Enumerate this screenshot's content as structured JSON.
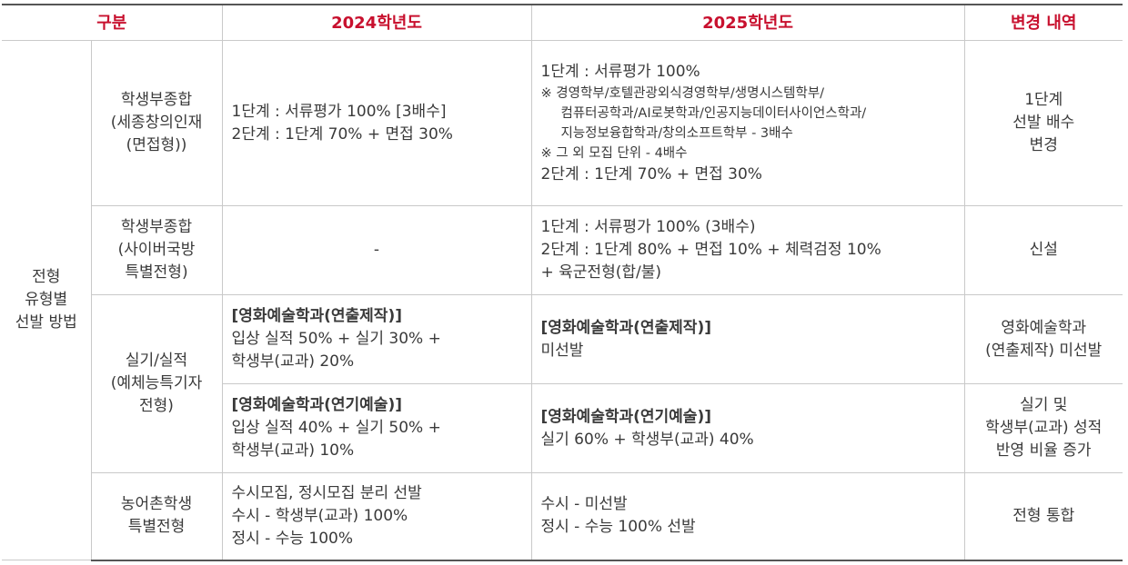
{
  "header": {
    "category": "구분",
    "y2024": "2024학년도",
    "y2025": "2025학년도",
    "change": "변경 내역"
  },
  "group_label": [
    "전형",
    "유형별",
    "선발 방법"
  ],
  "rows": {
    "r1": {
      "name": [
        "학생부종합",
        "(세종창의인재",
        "(면접형))"
      ],
      "y2024": [
        "1단계 : 서류평가 100% [3배수]",
        "2단계 : 1단계 70% + 면접 30%"
      ],
      "y2025": {
        "line1": "1단계 : 서류평가 100%",
        "notes": [
          "※ 경영학부/호텔관광외식경영학부/생명시스템학부/",
          "컴퓨터공학과/AI로봇학과/인공지능데이터사이언스학과/",
          "지능정보융합학과/창의소프트학부 - 3배수",
          "※ 그 외 모집 단위 - 4배수"
        ],
        "line2": "2단계 : 1단계 70% + 면접 30%"
      },
      "change": [
        "1단계",
        "선발 배수",
        "변경"
      ]
    },
    "r2": {
      "name": [
        "학생부종합",
        "(사이버국방",
        "특별전형)"
      ],
      "y2024": "-",
      "y2025": [
        "1단계 : 서류평가 100% (3배수)",
        "2단계 : 1단계 80% + 면접 10% + 체력검정 10%",
        "+ 육군전형(합/불)"
      ],
      "change": "신설"
    },
    "r3": {
      "name": [
        "실기/실적",
        "(예체능특기자",
        "전형)"
      ],
      "a": {
        "y2024_title": "[영화예술학과(연출제작)]",
        "y2024": [
          "입상 실적 50% + 실기 30% +",
          "학생부(교과) 20%"
        ],
        "y2025_title": "[영화예술학과(연출제작)]",
        "y2025": "미선발",
        "change": [
          "영화예술학과",
          "(연출제작) 미선발"
        ]
      },
      "b": {
        "y2024_title": "[영화예술학과(연기예술)]",
        "y2024": [
          "입상 실적 40% + 실기 50% +",
          "학생부(교과) 10%"
        ],
        "y2025_title": "[영화예술학과(연기예술)]",
        "y2025": "실기 60% + 학생부(교과) 40%",
        "change": [
          "실기 및",
          "학생부(교과) 성적",
          "반영 비율 증가"
        ]
      }
    },
    "r4": {
      "name": [
        "농어촌학생",
        "특별전형"
      ],
      "y2024": [
        "수시모집, 정시모집 분리 선발",
        "수시 - 학생부(교과) 100%",
        "정시 - 수능 100%"
      ],
      "y2025": [
        "수시 - 미선발",
        "정시 - 수능 100% 선발"
      ],
      "change": "전형 통합"
    }
  }
}
